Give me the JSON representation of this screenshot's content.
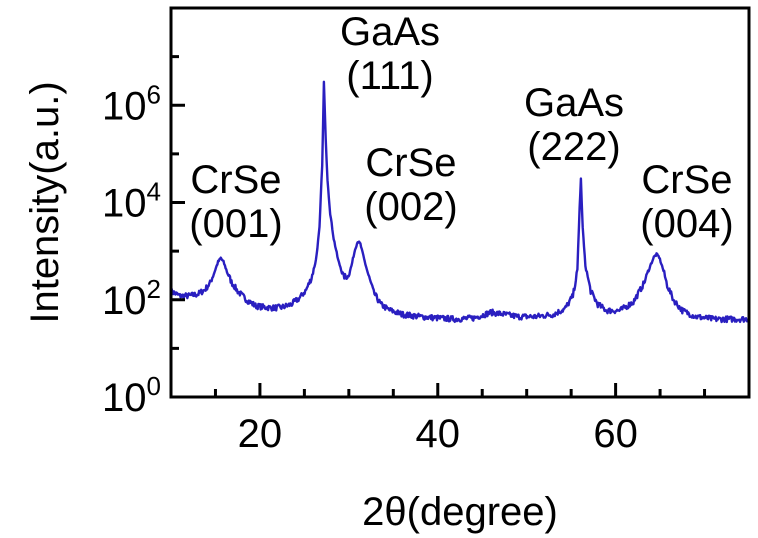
{
  "chart_data": {
    "type": "line",
    "title": "",
    "xlabel": "2θ(degree)",
    "ylabel": "Intensity(a.u.)",
    "xlim": [
      10,
      75
    ],
    "ylim": [
      1,
      100000000
    ],
    "yscale": "log",
    "grid": false,
    "legend": "none",
    "line_color": "#2a1fc0",
    "x_ticks": [
      20,
      40,
      60
    ],
    "x_tick_labels": [
      "20",
      "40",
      "60"
    ],
    "y_ticks": [
      1,
      100,
      10000,
      1000000
    ],
    "y_tick_labels": [
      {
        "base": "10",
        "exp": "0"
      },
      {
        "base": "10",
        "exp": "2"
      },
      {
        "base": "10",
        "exp": "4"
      },
      {
        "base": "10",
        "exp": "6"
      }
    ],
    "series": [
      {
        "x": [
          10.0,
          11.0,
          12.0,
          13.0,
          13.8,
          14.4,
          14.9,
          15.3,
          15.6,
          15.9,
          16.3,
          16.8,
          17.5,
          18.5,
          19.5,
          20.5,
          21.5,
          22.5,
          23.5,
          24.5,
          25.2,
          25.8,
          26.3,
          26.7,
          27.0,
          27.2,
          27.4,
          27.6,
          27.9,
          28.3,
          28.8,
          29.4,
          29.9,
          30.3,
          30.7,
          31.0,
          31.3,
          31.7,
          32.2,
          32.8,
          33.6,
          34.5,
          36.0,
          38.0,
          40.0,
          42.0,
          44.0,
          46.0,
          47.5,
          49.0,
          51.0,
          53.0,
          54.3,
          55.2,
          55.7,
          55.95,
          56.1,
          56.3,
          56.6,
          57.2,
          58.0,
          59.0,
          60.5,
          62.0,
          63.2,
          63.9,
          64.3,
          64.6,
          64.9,
          65.3,
          65.8,
          66.5,
          67.5,
          69.0,
          71.0,
          73.0,
          75.0
        ],
        "y": [
          150,
          120,
          120,
          130,
          160,
          220,
          380,
          600,
          720,
          600,
          380,
          230,
          150,
          100,
          75,
          70,
          68,
          70,
          80,
          110,
          160,
          280,
          650,
          3000,
          60000,
          3000000,
          200000,
          30000,
          6000,
          1800,
          650,
          300,
          300,
          500,
          1100,
          1600,
          1400,
          700,
          320,
          140,
          80,
          62,
          50,
          45,
          42,
          40,
          42,
          55,
          50,
          45,
          45,
          50,
          65,
          120,
          400,
          8000,
          30000,
          3000,
          500,
          150,
          80,
          60,
          60,
          90,
          220,
          500,
          750,
          860,
          750,
          450,
          200,
          100,
          60,
          45,
          40,
          40,
          40
        ]
      }
    ],
    "annotations": [
      {
        "x": 15.5,
        "lines": [
          "CrSe",
          "(001)"
        ]
      },
      {
        "x": 27.3,
        "lines": [
          "GaAs",
          "(111)"
        ]
      },
      {
        "x": 31.2,
        "lines": [
          "CrSe",
          "(002)"
        ]
      },
      {
        "x": 56.2,
        "lines": [
          "GaAs",
          "(222)"
        ]
      },
      {
        "x": 64.8,
        "lines": [
          "CrSe",
          "(004)"
        ]
      }
    ]
  }
}
